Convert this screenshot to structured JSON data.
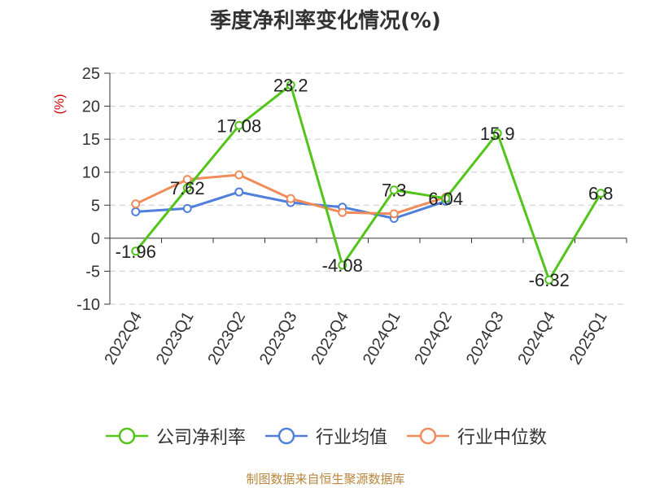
{
  "title": "季度净利率变化情况(%)",
  "source": "制图数据来自恒生聚源数据库",
  "chart_data": {
    "type": "line",
    "title": "季度净利率变化情况(%)",
    "ylabel": "(%)",
    "ylim": [
      -10,
      25
    ],
    "yticks": [
      25,
      20,
      15,
      10,
      5,
      0,
      -5,
      -10
    ],
    "grid": true,
    "legend_position": "bottom",
    "categories": [
      "2022Q4",
      "2023Q1",
      "2023Q2",
      "2023Q3",
      "2023Q4",
      "2024Q1",
      "2024Q2",
      "2024Q3",
      "2024Q4",
      "2025Q1"
    ],
    "series": [
      {
        "name": "公司净利率",
        "color": "#52c41a",
        "values": [
          -1.96,
          7.62,
          17.08,
          23.2,
          -4.08,
          7.3,
          6.04,
          15.9,
          -6.32,
          6.8
        ],
        "labels": [
          "-1.96",
          "7.62",
          "17.08",
          "23.2",
          "-4.08",
          "7.3",
          "6.04",
          "15.9",
          "-6.32",
          "6.8"
        ]
      },
      {
        "name": "行业均值",
        "color": "#4f7fdb",
        "values": [
          4.0,
          4.5,
          7.0,
          5.4,
          4.7,
          3.0,
          5.6,
          null,
          null,
          null
        ]
      },
      {
        "name": "行业中位数",
        "color": "#f08c5a",
        "values": [
          5.2,
          8.9,
          9.6,
          6.0,
          3.9,
          3.7,
          6.2,
          null,
          null,
          null
        ]
      }
    ]
  }
}
